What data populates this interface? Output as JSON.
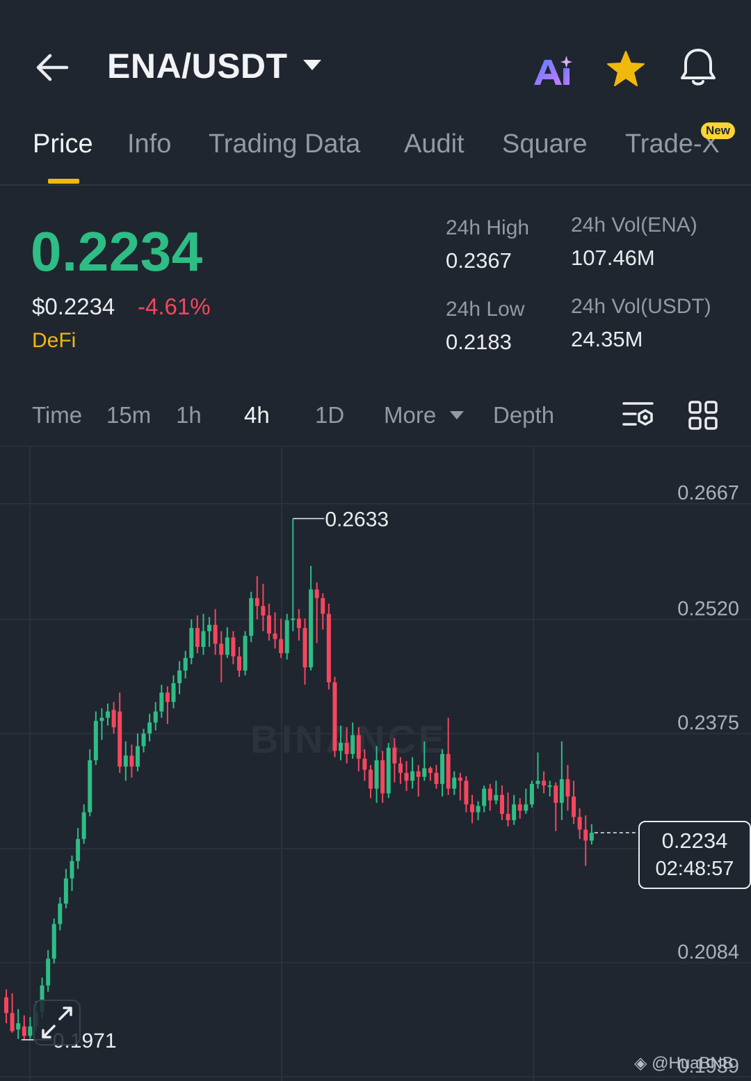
{
  "header": {
    "pair": "ENA/USDT",
    "icons": [
      "back-arrow-icon",
      "caret-down-icon",
      "ai-icon",
      "star-icon",
      "bell-icon"
    ]
  },
  "tabs": [
    {
      "label": "Price",
      "active": true
    },
    {
      "label": "Info"
    },
    {
      "label": "Trading Data"
    },
    {
      "label": "Audit"
    },
    {
      "label": "Square"
    },
    {
      "label": "Trade-X",
      "badge": "New"
    }
  ],
  "summary": {
    "price": "0.2234",
    "price_usd": "$0.2234",
    "change": "-4.61%",
    "category": "DeFi",
    "high_label": "24h High",
    "high": "0.2367",
    "low_label": "24h Low",
    "low": "0.2183",
    "vol_base_label": "24h Vol(ENA)",
    "vol_base": "107.46M",
    "vol_quote_label": "24h Vol(USDT)",
    "vol_quote": "24.35M"
  },
  "timeframes": {
    "items": [
      "Time",
      "15m",
      "1h",
      "4h",
      "1D",
      "More",
      "Depth"
    ],
    "active": "4h"
  },
  "colors": {
    "up": "#2ebd85",
    "down": "#f6465d",
    "accent": "#f0b90b",
    "background": "#1f2630"
  },
  "chart_data": {
    "type": "candlestick",
    "y_ticks": [
      "0.2667",
      "0.2520",
      "0.2375",
      "0.2229",
      "0.2084",
      "0.1939"
    ],
    "ylim": [
      0.1939,
      0.2667
    ],
    "max_label": "0.2633",
    "min_label": "0.1971",
    "current_price": "0.2234",
    "countdown": "02:48:57",
    "watermark": "BINANCE",
    "candles": [
      [
        0.2025,
        0.2005,
        0.2035,
        0.1992
      ],
      [
        0.2005,
        0.1982,
        0.203,
        0.198
      ],
      [
        0.1984,
        0.1992,
        0.201,
        0.1972
      ],
      [
        0.1988,
        0.1976,
        0.2002,
        0.1971
      ],
      [
        0.1976,
        0.1988,
        0.2,
        0.1972
      ],
      [
        0.1988,
        0.2006,
        0.202,
        0.1982
      ],
      [
        0.2006,
        0.204,
        0.205,
        0.1998
      ],
      [
        0.204,
        0.2074,
        0.2085,
        0.2032
      ],
      [
        0.2074,
        0.2118,
        0.2125,
        0.2068
      ],
      [
        0.2118,
        0.2144,
        0.2152,
        0.211
      ],
      [
        0.2144,
        0.2176,
        0.2188,
        0.2138
      ],
      [
        0.2176,
        0.2198,
        0.2205,
        0.216
      ],
      [
        0.2198,
        0.2226,
        0.224,
        0.2188
      ],
      [
        0.2226,
        0.226,
        0.227,
        0.222
      ],
      [
        0.226,
        0.2326,
        0.234,
        0.2255
      ],
      [
        0.2326,
        0.2376,
        0.2388,
        0.232
      ],
      [
        0.2376,
        0.238,
        0.2392,
        0.2352
      ],
      [
        0.238,
        0.2388,
        0.2398,
        0.237
      ],
      [
        0.239,
        0.2368,
        0.24,
        0.236
      ],
      [
        0.2388,
        0.2318,
        0.2412,
        0.231
      ],
      [
        0.2318,
        0.2332,
        0.235,
        0.23
      ],
      [
        0.2332,
        0.2318,
        0.2346,
        0.2304
      ],
      [
        0.2318,
        0.2344,
        0.236,
        0.2312
      ],
      [
        0.2344,
        0.236,
        0.2366,
        0.2336
      ],
      [
        0.236,
        0.2374,
        0.2385,
        0.235
      ],
      [
        0.2374,
        0.2388,
        0.24,
        0.2364
      ],
      [
        0.2388,
        0.2412,
        0.2422,
        0.238
      ],
      [
        0.2412,
        0.24,
        0.242,
        0.2372
      ],
      [
        0.24,
        0.2424,
        0.2434,
        0.2392
      ],
      [
        0.2424,
        0.244,
        0.2452,
        0.241
      ],
      [
        0.244,
        0.2456,
        0.2465,
        0.243
      ],
      [
        0.2456,
        0.2494,
        0.2505,
        0.2448
      ],
      [
        0.2494,
        0.247,
        0.251,
        0.2462
      ],
      [
        0.247,
        0.249,
        0.2512,
        0.246
      ],
      [
        0.249,
        0.2498,
        0.2508,
        0.247
      ],
      [
        0.2498,
        0.2474,
        0.2518,
        0.246
      ],
      [
        0.2474,
        0.246,
        0.249,
        0.2425
      ],
      [
        0.246,
        0.2482,
        0.2495,
        0.2456
      ],
      [
        0.2482,
        0.2458,
        0.249,
        0.2448
      ],
      [
        0.2458,
        0.244,
        0.247,
        0.2432
      ],
      [
        0.244,
        0.2484,
        0.249,
        0.2434
      ],
      [
        0.2484,
        0.2532,
        0.254,
        0.2476
      ],
      [
        0.2532,
        0.2522,
        0.256,
        0.2505
      ],
      [
        0.2522,
        0.251,
        0.255,
        0.249
      ],
      [
        0.251,
        0.2487,
        0.2525,
        0.2478
      ],
      [
        0.2487,
        0.248,
        0.2514,
        0.2468
      ],
      [
        0.248,
        0.2462,
        0.2506,
        0.2456
      ],
      [
        0.2462,
        0.2504,
        0.2512,
        0.2454
      ],
      [
        0.2504,
        0.2506,
        0.2633,
        0.249
      ],
      [
        0.2506,
        0.2494,
        0.2518,
        0.2478
      ],
      [
        0.2494,
        0.2444,
        0.2506,
        0.2422
      ],
      [
        0.2444,
        0.2543,
        0.2573,
        0.244
      ],
      [
        0.2543,
        0.2532,
        0.2552,
        0.2475
      ],
      [
        0.2532,
        0.2512,
        0.2538,
        0.2492
      ],
      [
        0.2512,
        0.2425,
        0.2525,
        0.2416
      ],
      [
        0.2425,
        0.2338,
        0.2432,
        0.233
      ],
      [
        0.2338,
        0.2348,
        0.237,
        0.2326
      ],
      [
        0.2348,
        0.2334,
        0.2368,
        0.2322
      ],
      [
        0.2334,
        0.2358,
        0.2374,
        0.2328
      ],
      [
        0.2358,
        0.2328,
        0.2368,
        0.2312
      ],
      [
        0.2328,
        0.2314,
        0.234,
        0.23
      ],
      [
        0.2314,
        0.229,
        0.232,
        0.2278
      ],
      [
        0.229,
        0.2326,
        0.2344,
        0.2272
      ],
      [
        0.2326,
        0.2284,
        0.2338,
        0.2272
      ],
      [
        0.2284,
        0.2342,
        0.2348,
        0.2278
      ],
      [
        0.2342,
        0.2322,
        0.2354,
        0.2298
      ],
      [
        0.2322,
        0.231,
        0.233,
        0.2296
      ],
      [
        0.231,
        0.23,
        0.2325,
        0.2287
      ],
      [
        0.23,
        0.2312,
        0.233,
        0.229
      ],
      [
        0.2312,
        0.2305,
        0.232,
        0.228
      ],
      [
        0.2305,
        0.2316,
        0.235,
        0.23
      ],
      [
        0.2316,
        0.231,
        0.2318,
        0.23
      ],
      [
        0.231,
        0.2296,
        0.232,
        0.229
      ],
      [
        0.2296,
        0.2334,
        0.234,
        0.228
      ],
      [
        0.2334,
        0.229,
        0.238,
        0.2282
      ],
      [
        0.229,
        0.2304,
        0.2312,
        0.2282
      ],
      [
        0.2304,
        0.23,
        0.231,
        0.2275
      ],
      [
        0.23,
        0.227,
        0.2306,
        0.226
      ],
      [
        0.227,
        0.226,
        0.2282,
        0.2246
      ],
      [
        0.226,
        0.2268,
        0.2274,
        0.225
      ],
      [
        0.2268,
        0.229,
        0.2294,
        0.226
      ],
      [
        0.229,
        0.2275,
        0.2296,
        0.2262
      ],
      [
        0.2275,
        0.2282,
        0.23,
        0.227
      ],
      [
        0.2282,
        0.2258,
        0.2294,
        0.225
      ],
      [
        0.2258,
        0.225,
        0.2285,
        0.2242
      ],
      [
        0.225,
        0.227,
        0.2282,
        0.2244
      ],
      [
        0.227,
        0.2262,
        0.2278,
        0.2252
      ],
      [
        0.2262,
        0.227,
        0.229,
        0.2258
      ],
      [
        0.227,
        0.2296,
        0.23,
        0.2266
      ],
      [
        0.2296,
        0.23,
        0.2336,
        0.229
      ],
      [
        0.23,
        0.2294,
        0.2312,
        0.2284
      ],
      [
        0.2294,
        0.2294,
        0.23,
        0.228
      ],
      [
        0.2294,
        0.2272,
        0.2298,
        0.2236
      ],
      [
        0.2272,
        0.2302,
        0.235,
        0.225
      ],
      [
        0.2302,
        0.228,
        0.232,
        0.2262
      ],
      [
        0.228,
        0.2254,
        0.23,
        0.2245
      ],
      [
        0.2254,
        0.2238,
        0.2265,
        0.2226
      ],
      [
        0.2238,
        0.2224,
        0.2256,
        0.2192
      ],
      [
        0.2224,
        0.2234,
        0.2245,
        0.2219
      ]
    ]
  },
  "credit": "@HuaBNB"
}
